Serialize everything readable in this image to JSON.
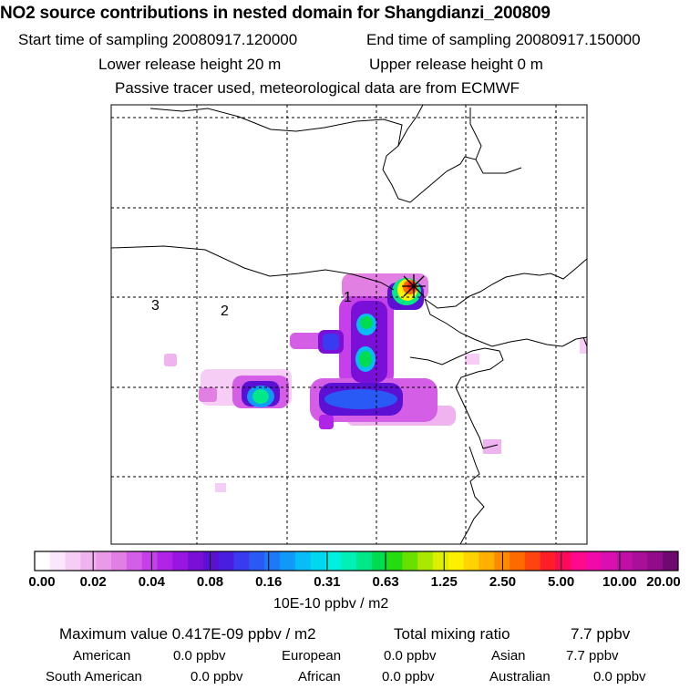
{
  "header": {
    "title": "NO2 source contributions in nested domain for Shangdianzi_200809",
    "start_label": "Start time of sampling 20080917.120000",
    "end_label": "End time of sampling 20080917.150000",
    "lower_label": "Lower release height   20 m",
    "upper_label": "Upper release height    0 m",
    "tracer_note": "Passive tracer used, meteorological data are from ECMWF"
  },
  "chart_data": {
    "type": "heatmap",
    "description_units": "10E-10 ppbv / m2",
    "region_labels": [
      "1",
      "2",
      "3"
    ],
    "colorbar": {
      "ticks": [
        "0.00",
        "0.02",
        "0.04",
        "0.08",
        "0.16",
        "0.31",
        "0.63",
        "1.25",
        "2.50",
        "5.00",
        "10.00",
        "20.00"
      ],
      "colors": [
        "#ffffff",
        "#fbe6fb",
        "#f5cdf5",
        "#efb3ef",
        "#e99ae9",
        "#e27fe2",
        "#d55ee6",
        "#c540e8",
        "#b024e8",
        "#9716e0",
        "#7a10d8",
        "#5c10d4",
        "#4a1ee0",
        "#3a3af0",
        "#2a5af6",
        "#1c7af8",
        "#109af8",
        "#08bcf6",
        "#00d8f0",
        "#00f0e0",
        "#00f0b8",
        "#00e888",
        "#00dc50",
        "#24dc10",
        "#6ae000",
        "#aae800",
        "#dcf000",
        "#fff000",
        "#ffd400",
        "#ffb000",
        "#ff8c00",
        "#ff6a00",
        "#ff4410",
        "#ff1e28",
        "#ff0a5a",
        "#ff0a8c",
        "#f00aa8",
        "#d810b0",
        "#c010a8",
        "#a8109a",
        "#900c88",
        "#700870"
      ]
    },
    "plumes": [
      {
        "name": "source-peak",
        "value": 4.17
      },
      {
        "name": "corridor-upper",
        "value": 0.6
      },
      {
        "name": "corridor-lower",
        "value": 0.6
      },
      {
        "name": "west-blob",
        "value": 0.25
      },
      {
        "name": "small-cyan",
        "value": 0.12
      },
      {
        "name": "south-band",
        "value": 0.14
      }
    ]
  },
  "footer": {
    "units": "10E-10 ppbv / m2",
    "max_label": "Maximum value  0.417E-09 ppbv / m2",
    "total_label": "Total mixing ratio",
    "total_value": "7.7 ppbv",
    "american_label": "American",
    "american_value": "0.0 ppbv",
    "european_label": "European",
    "european_value": "0.0 ppbv",
    "asian_label": "Asian",
    "asian_value": "7.7 ppbv",
    "south_american_label": "South American",
    "south_american_value": "0.0 ppbv",
    "african_label": "African",
    "african_value": "0.0 ppbv",
    "australian_label": "Australian",
    "australian_value": "0.0 ppbv"
  }
}
